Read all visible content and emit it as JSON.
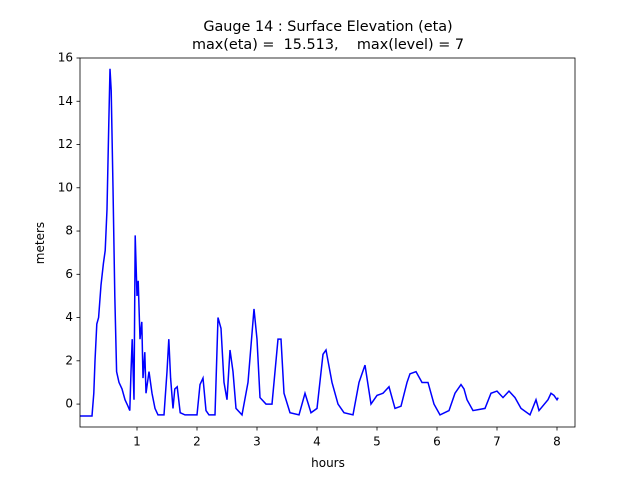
{
  "chart_data": {
    "type": "line",
    "title": "Gauge 14 : Surface Elevation (eta)",
    "subtitle": "max(eta) =  15.513,    max(level) = 7",
    "x_label": "hours",
    "y_label": "meters",
    "xlim": [
      0.05,
      8.3
    ],
    "ylim": [
      -1.06,
      16
    ],
    "xticks": [
      1,
      2,
      3,
      4,
      5,
      6,
      7,
      8
    ],
    "yticks": [
      0,
      2,
      4,
      6,
      8,
      10,
      12,
      14,
      16
    ],
    "x": [
      0.05,
      0.25,
      0.28,
      0.3,
      0.33,
      0.36,
      0.4,
      0.44,
      0.47,
      0.5,
      0.53,
      0.55,
      0.57,
      0.6,
      0.63,
      0.66,
      0.7,
      0.75,
      0.8,
      0.85,
      0.88,
      0.9,
      0.92,
      0.95,
      0.97,
      1.0,
      1.02,
      1.05,
      1.08,
      1.1,
      1.13,
      1.15,
      1.2,
      1.25,
      1.3,
      1.35,
      1.45,
      1.5,
      1.53,
      1.56,
      1.6,
      1.63,
      1.67,
      1.72,
      1.8,
      2.0,
      2.05,
      2.1,
      2.15,
      2.2,
      2.3,
      2.35,
      2.4,
      2.45,
      2.5,
      2.55,
      2.6,
      2.65,
      2.75,
      2.85,
      2.95,
      3.0,
      3.05,
      3.15,
      3.25,
      3.35,
      3.4,
      3.45,
      3.55,
      3.7,
      3.8,
      3.9,
      4.0,
      4.1,
      4.15,
      4.25,
      4.35,
      4.45,
      4.6,
      4.7,
      4.8,
      4.9,
      5.0,
      5.1,
      5.2,
      5.3,
      5.4,
      5.5,
      5.55,
      5.65,
      5.75,
      5.85,
      5.95,
      6.05,
      6.2,
      6.3,
      6.4,
      6.45,
      6.5,
      6.6,
      6.8,
      6.9,
      7.0,
      7.1,
      7.2,
      7.3,
      7.4,
      7.55,
      7.65,
      7.7,
      7.85,
      7.9,
      7.95,
      8.0,
      8.02
    ],
    "series": [
      {
        "name": "eta",
        "color": "#0000ff",
        "values": [
          -0.55,
          -0.55,
          0.5,
          2,
          3.7,
          4,
          5.5,
          6.5,
          7.1,
          9,
          13,
          15.5,
          14.5,
          10,
          5,
          1.5,
          1,
          0.7,
          0.2,
          -0.1,
          -0.3,
          1.5,
          3,
          0.2,
          7.8,
          5,
          5.7,
          3,
          3.8,
          1.2,
          2.4,
          0.5,
          1.5,
          0.5,
          -0.2,
          -0.5,
          -0.5,
          1.5,
          3,
          1.2,
          -0.2,
          0.7,
          0.8,
          -0.4,
          -0.5,
          -0.5,
          0.9,
          1.2,
          -0.3,
          -0.5,
          -0.5,
          4,
          3.5,
          1,
          0.2,
          2.5,
          1.5,
          -0.2,
          -0.5,
          1,
          4.4,
          3,
          0.3,
          0,
          0,
          3,
          3,
          0.5,
          -0.4,
          -0.5,
          0.5,
          -0.4,
          -0.2,
          2.3,
          2.5,
          1,
          0,
          -0.4,
          -0.5,
          1,
          1.8,
          0,
          0.4,
          0.5,
          0.8,
          -0.2,
          -0.1,
          1,
          1.4,
          1.5,
          1,
          1,
          0,
          -0.5,
          -0.3,
          0.5,
          0.9,
          0.7,
          0.2,
          -0.3,
          -0.2,
          0.5,
          0.6,
          0.3,
          0.6,
          0.3,
          -0.2,
          -0.5,
          0.2,
          -0.3,
          0.2,
          0.5,
          0.4,
          0.2,
          0.3
        ]
      }
    ]
  }
}
